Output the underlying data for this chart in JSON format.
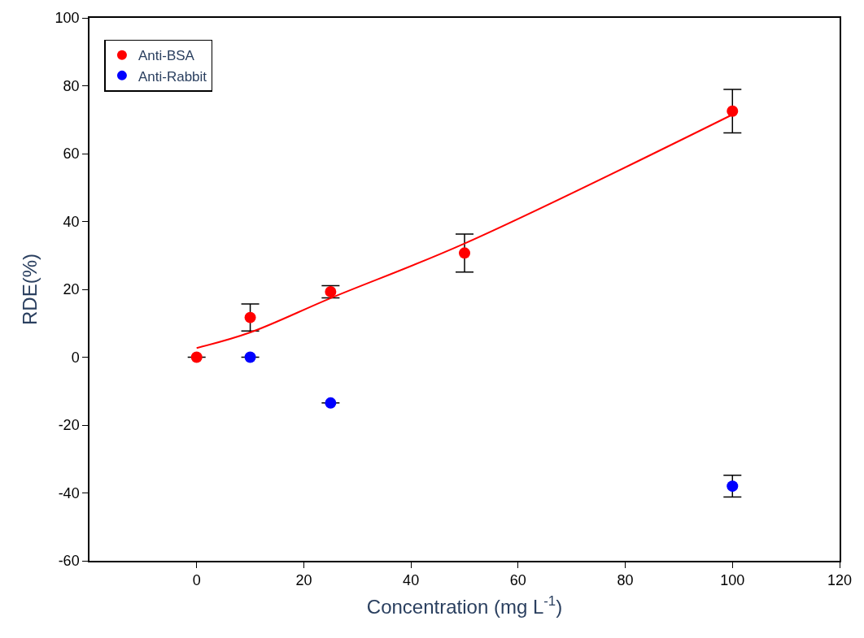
{
  "chart_data": {
    "type": "scatter",
    "xlabel": "Concentration (mg L$^{-1}$)",
    "ylabel": "RDE(%)",
    "xlim": [
      -20,
      120
    ],
    "xticks": [
      0,
      20,
      40,
      60,
      80,
      100,
      120
    ],
    "ylim": [
      -60,
      100
    ],
    "yticks": [
      -60,
      -40,
      -20,
      0,
      20,
      40,
      60,
      80,
      100
    ],
    "legend": "top left",
    "series": [
      {
        "name": "Anti-BSA",
        "color": "#ff0000",
        "x": [
          0,
          10,
          25,
          50,
          100
        ],
        "values": [
          0,
          11.7,
          19.3,
          30.7,
          72.5
        ],
        "errors": [
          null,
          4,
          1.8,
          5.6,
          6.4
        ],
        "marker": "circle"
      },
      {
        "name": "Anti-Rabbit",
        "color": "#0000ff",
        "x": [
          10,
          25,
          100
        ],
        "values": [
          0,
          -13.5,
          -38
        ],
        "errors": [
          null,
          null,
          3.2
        ],
        "marker": "circle"
      },
      {
        "type": "line",
        "color": "#ff0000",
        "line_style": "solid",
        "x": [
          0,
          10,
          25,
          50,
          100
        ],
        "values": [
          2.7,
          7.3,
          17.4,
          33.5,
          71.5
        ]
      }
    ]
  }
}
